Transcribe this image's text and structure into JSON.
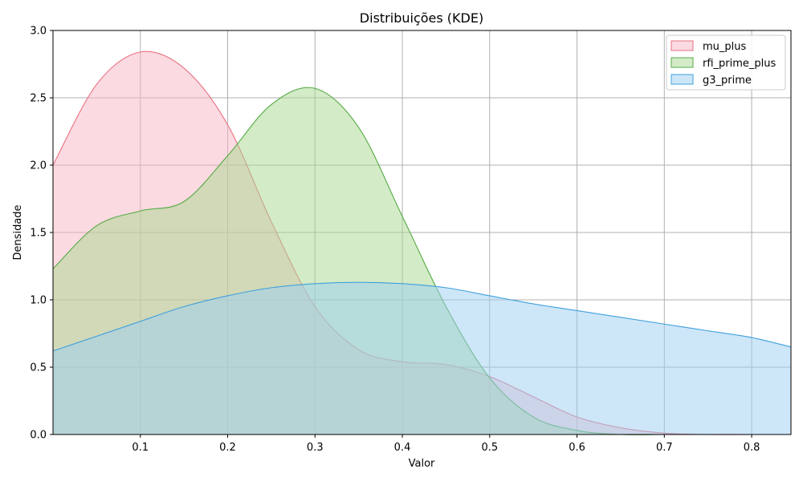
{
  "chart_data": {
    "type": "area",
    "title": "Distribuições (KDE)",
    "xlabel": "Valor",
    "ylabel": "Densidade",
    "xlim": [
      0.0,
      0.845
    ],
    "ylim": [
      0.0,
      3.0
    ],
    "xticks": [
      "0.1",
      "0.2",
      "0.3",
      "0.4",
      "0.5",
      "0.6",
      "0.7",
      "0.8"
    ],
    "yticks": [
      "0.0",
      "0.5",
      "1.0",
      "1.5",
      "2.0",
      "2.5",
      "3.0"
    ],
    "grid": true,
    "legend_position": "top-right",
    "x": [
      0.0,
      0.05,
      0.1,
      0.15,
      0.2,
      0.25,
      0.3,
      0.35,
      0.4,
      0.45,
      0.5,
      0.55,
      0.6,
      0.65,
      0.7,
      0.75,
      0.8,
      0.845
    ],
    "series": [
      {
        "name": "mu_plus",
        "color": "#e8707f",
        "fill": "#f7b6c4",
        "values": [
          2.0,
          2.6,
          2.84,
          2.72,
          2.3,
          1.58,
          0.95,
          0.63,
          0.54,
          0.52,
          0.43,
          0.28,
          0.13,
          0.05,
          0.01,
          0.0,
          0.0,
          0.0
        ]
      },
      {
        "name": "rfi_prime_plus",
        "color": "#55aa44",
        "fill": "#a8d890",
        "values": [
          1.23,
          1.55,
          1.66,
          1.73,
          2.07,
          2.45,
          2.57,
          2.28,
          1.62,
          0.95,
          0.42,
          0.13,
          0.03,
          0.0,
          0.0,
          0.0,
          0.0,
          0.0
        ]
      },
      {
        "name": "g3_prime",
        "color": "#3fa0dd",
        "fill": "#9bcdf2",
        "values": [
          0.62,
          0.73,
          0.84,
          0.95,
          1.03,
          1.09,
          1.12,
          1.13,
          1.12,
          1.09,
          1.03,
          0.97,
          0.92,
          0.87,
          0.82,
          0.77,
          0.72,
          0.65
        ]
      }
    ]
  }
}
